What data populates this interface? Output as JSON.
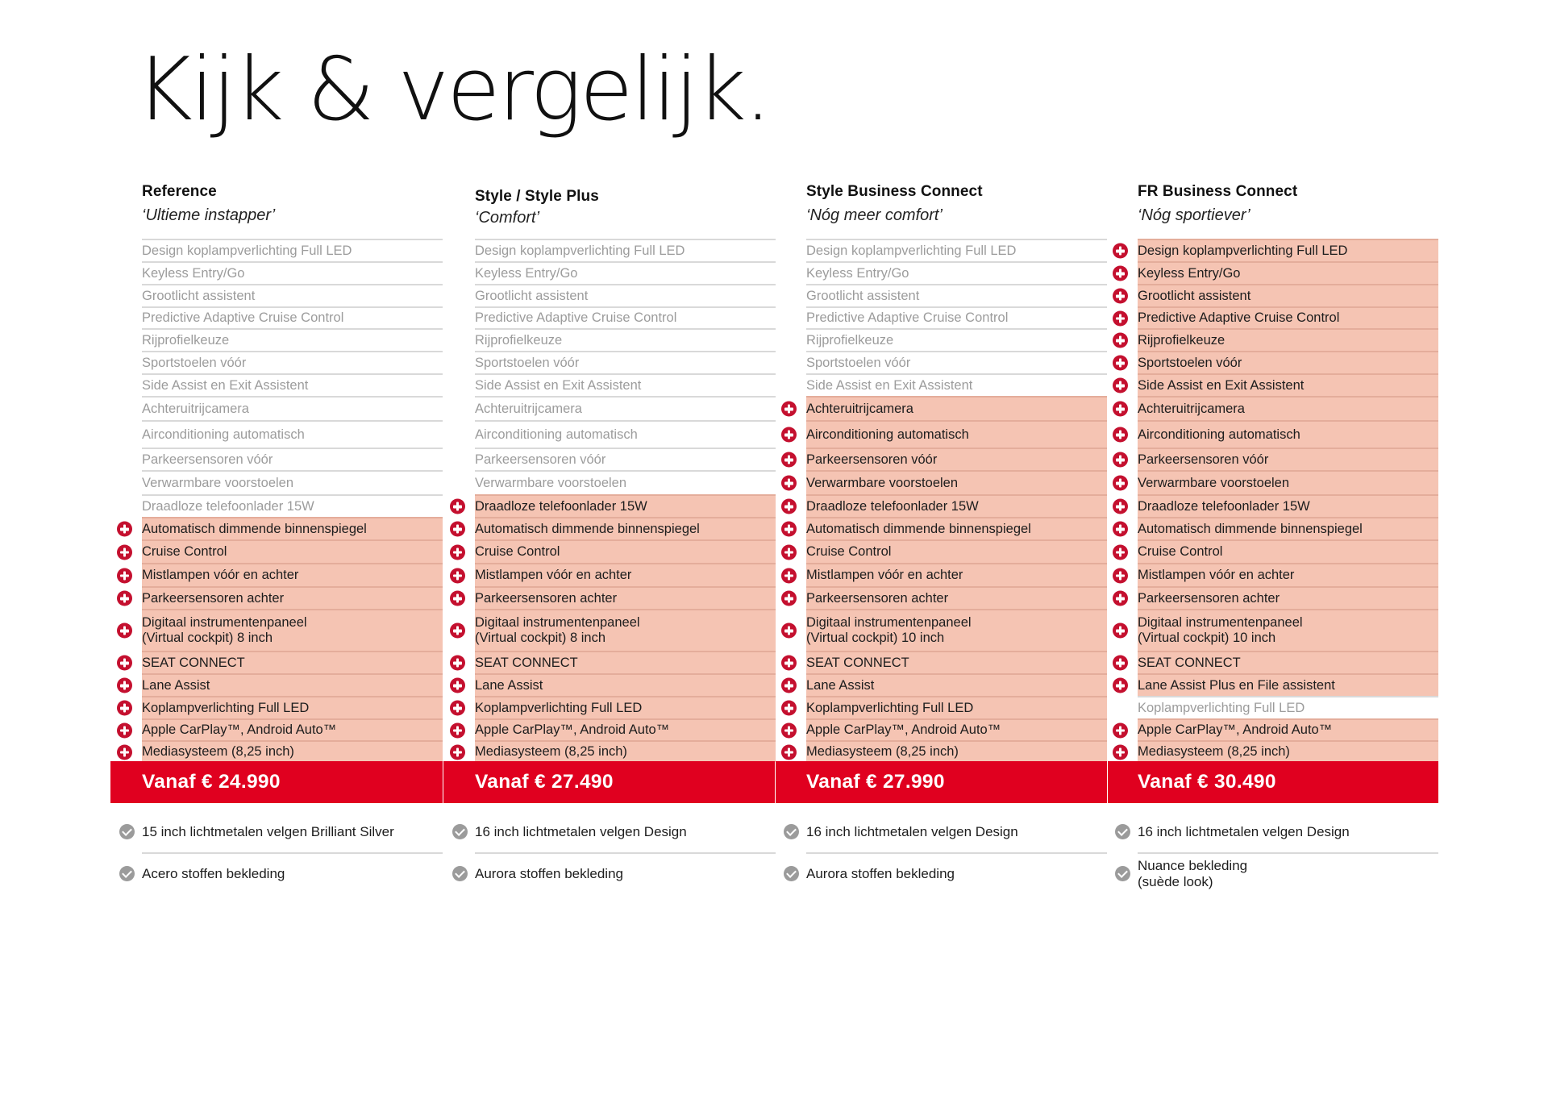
{
  "page": {
    "title": "Kijk & vergelijk.",
    "colors": {
      "highlight_bg": "#f5c4b3",
      "plus_icon": "#c4102f",
      "price_bar": "#e0001f",
      "check_icon": "#9b9b9b",
      "muted_text": "#9c9c9c"
    }
  },
  "columns": [
    {
      "name": "Reference",
      "tagline": "‘Ultieme instapper’",
      "price": "Vanaf € 24.990",
      "features": [
        {
          "label": "Design koplampverlichting Full LED",
          "included": false
        },
        {
          "label": "Keyless Entry/Go",
          "included": false
        },
        {
          "label": "Grootlicht assistent",
          "included": false
        },
        {
          "label": "Predictive Adaptive Cruise Control",
          "included": false
        },
        {
          "label": "Rijprofielkeuze",
          "included": false
        },
        {
          "label": "Sportstoelen vóór",
          "included": false
        },
        {
          "label": "Side Assist en Exit Assistent",
          "included": false
        },
        {
          "label": "Achteruitrijcamera",
          "included": false
        },
        {
          "label": "Airconditioning automatisch",
          "included": false
        },
        {
          "label": "Parkeersensoren vóór",
          "included": false
        },
        {
          "label": "Verwarmbare voorstoelen",
          "included": false
        },
        {
          "label": "Draadloze telefoonlader 15W",
          "included": false
        },
        {
          "label": "Automatisch dimmende binnenspiegel",
          "included": true
        },
        {
          "label": "Cruise Control",
          "included": true
        },
        {
          "label": "Mistlampen vóór en achter",
          "included": true
        },
        {
          "label": "Parkeersensoren achter",
          "included": true
        },
        {
          "label": "Digitaal instrumentenpaneel\n(Virtual cockpit) 8 inch",
          "included": true
        },
        {
          "label": "SEAT CONNECT",
          "included": true
        },
        {
          "label": "Lane Assist",
          "included": true
        },
        {
          "label": "Koplampverlichting Full LED",
          "included": true
        },
        {
          "label": "Apple CarPlay™, Android Auto™",
          "included": true
        },
        {
          "label": "Mediasysteem (8,25 inch)",
          "included": true
        }
      ],
      "extras": [
        "15 inch lichtmetalen velgen Brilliant Silver",
        "Acero stoffen bekleding"
      ]
    },
    {
      "name": "Style / Style Plus",
      "tagline": "‘Comfort’",
      "price": "Vanaf € 27.490",
      "features": [
        {
          "label": "Design koplampverlichting Full LED",
          "included": false
        },
        {
          "label": "Keyless Entry/Go",
          "included": false
        },
        {
          "label": "Grootlicht assistent",
          "included": false
        },
        {
          "label": "Predictive Adaptive Cruise Control",
          "included": false
        },
        {
          "label": "Rijprofielkeuze",
          "included": false
        },
        {
          "label": "Sportstoelen vóór",
          "included": false
        },
        {
          "label": "Side Assist en Exit Assistent",
          "included": false
        },
        {
          "label": "Achteruitrijcamera",
          "included": false
        },
        {
          "label": "Airconditioning automatisch",
          "included": false
        },
        {
          "label": "Parkeersensoren vóór",
          "included": false
        },
        {
          "label": "Verwarmbare voorstoelen",
          "included": false
        },
        {
          "label": "Draadloze telefoonlader 15W",
          "included": true
        },
        {
          "label": "Automatisch dimmende binnenspiegel",
          "included": true
        },
        {
          "label": "Cruise Control",
          "included": true
        },
        {
          "label": "Mistlampen vóór en achter",
          "included": true
        },
        {
          "label": "Parkeersensoren achter",
          "included": true
        },
        {
          "label": "Digitaal instrumentenpaneel\n(Virtual cockpit) 8 inch",
          "included": true
        },
        {
          "label": "SEAT CONNECT",
          "included": true
        },
        {
          "label": "Lane Assist",
          "included": true
        },
        {
          "label": "Koplampverlichting Full LED",
          "included": true
        },
        {
          "label": "Apple CarPlay™, Android Auto™",
          "included": true
        },
        {
          "label": "Mediasysteem (8,25 inch)",
          "included": true
        }
      ],
      "extras": [
        "16 inch lichtmetalen velgen Design",
        "Aurora stoffen bekleding"
      ]
    },
    {
      "name": "Style Business Connect",
      "tagline": "‘Nóg meer comfort’",
      "price": "Vanaf € 27.990",
      "features": [
        {
          "label": "Design koplampverlichting Full LED",
          "included": false
        },
        {
          "label": "Keyless Entry/Go",
          "included": false
        },
        {
          "label": "Grootlicht assistent",
          "included": false
        },
        {
          "label": "Predictive Adaptive Cruise Control",
          "included": false
        },
        {
          "label": "Rijprofielkeuze",
          "included": false
        },
        {
          "label": "Sportstoelen vóór",
          "included": false
        },
        {
          "label": "Side Assist en Exit Assistent",
          "included": false
        },
        {
          "label": "Achteruitrijcamera",
          "included": true
        },
        {
          "label": "Airconditioning automatisch",
          "included": true
        },
        {
          "label": "Parkeersensoren vóór",
          "included": true
        },
        {
          "label": "Verwarmbare voorstoelen",
          "included": true
        },
        {
          "label": "Draadloze telefoonlader 15W",
          "included": true
        },
        {
          "label": "Automatisch dimmende binnenspiegel",
          "included": true
        },
        {
          "label": "Cruise Control",
          "included": true
        },
        {
          "label": "Mistlampen vóór en achter",
          "included": true
        },
        {
          "label": "Parkeersensoren achter",
          "included": true
        },
        {
          "label": "Digitaal instrumentenpaneel\n(Virtual cockpit) 10 inch",
          "included": true
        },
        {
          "label": "SEAT CONNECT",
          "included": true
        },
        {
          "label": "Lane Assist",
          "included": true
        },
        {
          "label": "Koplampverlichting Full LED",
          "included": true
        },
        {
          "label": "Apple CarPlay™, Android Auto™",
          "included": true
        },
        {
          "label": "Mediasysteem (8,25 inch)",
          "included": true
        }
      ],
      "extras": [
        "16 inch lichtmetalen velgen Design",
        "Aurora stoffen bekleding"
      ]
    },
    {
      "name": "FR Business Connect",
      "tagline": "‘Nóg sportiever’",
      "price": "Vanaf € 30.490",
      "features": [
        {
          "label": "Design koplampverlichting Full LED",
          "included": true
        },
        {
          "label": "Keyless Entry/Go",
          "included": true
        },
        {
          "label": "Grootlicht assistent",
          "included": true
        },
        {
          "label": "Predictive Adaptive Cruise Control",
          "included": true
        },
        {
          "label": "Rijprofielkeuze",
          "included": true
        },
        {
          "label": "Sportstoelen vóór",
          "included": true
        },
        {
          "label": "Side Assist en Exit Assistent",
          "included": true
        },
        {
          "label": "Achteruitrijcamera",
          "included": true
        },
        {
          "label": "Airconditioning automatisch",
          "included": true
        },
        {
          "label": "Parkeersensoren vóór",
          "included": true
        },
        {
          "label": "Verwarmbare voorstoelen",
          "included": true
        },
        {
          "label": "Draadloze telefoonlader 15W",
          "included": true
        },
        {
          "label": "Automatisch dimmende binnenspiegel",
          "included": true
        },
        {
          "label": "Cruise Control",
          "included": true
        },
        {
          "label": "Mistlampen vóór en achter",
          "included": true
        },
        {
          "label": "Parkeersensoren achter",
          "included": true
        },
        {
          "label": "Digitaal instrumentenpaneel\n(Virtual cockpit) 10 inch",
          "included": true
        },
        {
          "label": "SEAT CONNECT",
          "included": true
        },
        {
          "label": "Lane Assist Plus en File assistent",
          "included": true
        },
        {
          "label": "Koplampverlichting Full LED",
          "included": false
        },
        {
          "label": "Apple CarPlay™, Android Auto™",
          "included": true
        },
        {
          "label": "Mediasysteem (8,25 inch)",
          "included": true
        }
      ],
      "extras": [
        "16 inch lichtmetalen velgen Design",
        "Nuance  bekleding\n(suède look)"
      ]
    }
  ]
}
